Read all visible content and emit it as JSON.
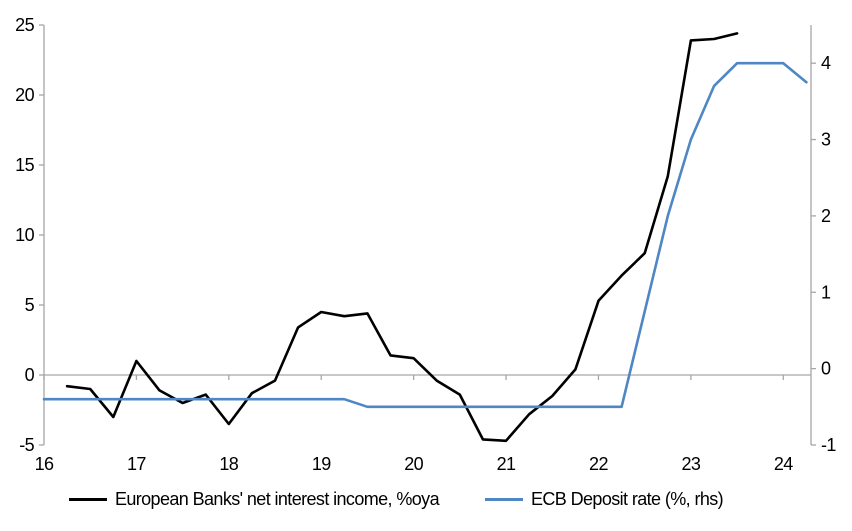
{
  "chart_data": {
    "type": "line",
    "title": "",
    "xlabel": "",
    "ylabel": "",
    "grid": "zero-line-only",
    "legend_position": "bottom-center",
    "axis_color": "#a6a6a6",
    "text_color": "#000000",
    "background_color": "#ffffff",
    "x_axis": {
      "min": 16,
      "max": 24.3,
      "ticks": [
        16,
        17,
        18,
        19,
        20,
        21,
        22,
        23,
        24
      ],
      "tick_labels": [
        "16",
        "17",
        "18",
        "19",
        "20",
        "21",
        "22",
        "23",
        "24"
      ]
    },
    "left_axis": {
      "min": -5,
      "max": 25,
      "ticks": [
        -5,
        0,
        5,
        10,
        15,
        20,
        25
      ],
      "tick_labels": [
        "-5",
        "0",
        "5",
        "10",
        "15",
        "20",
        "25"
      ]
    },
    "right_axis": {
      "min": -1,
      "max": 4.5,
      "ticks": [
        -1,
        0,
        1,
        2,
        3,
        4
      ],
      "tick_labels": [
        "-1",
        "0",
        "1",
        "2",
        "3",
        "4"
      ]
    },
    "series": [
      {
        "name": "European Banks' net interest income, %oya",
        "axis": "left",
        "color": "#000000",
        "stroke_width": 2.6,
        "x": [
          16.25,
          16.5,
          16.75,
          17,
          17.25,
          17.5,
          17.75,
          18,
          18.25,
          18.5,
          18.75,
          19,
          19.25,
          19.5,
          19.75,
          20,
          20.25,
          20.5,
          20.75,
          21,
          21.25,
          21.5,
          21.75,
          22,
          22.25,
          22.5,
          22.75,
          23,
          23.25,
          23.5
        ],
        "y": [
          -0.8,
          -1.0,
          -3.0,
          1.0,
          -1.1,
          -2.0,
          -1.4,
          -3.5,
          -1.3,
          -0.4,
          3.4,
          4.5,
          4.2,
          4.4,
          1.4,
          1.2,
          -0.4,
          -1.4,
          -4.6,
          -4.7,
          -2.8,
          -1.5,
          0.4,
          5.3,
          7.1,
          8.7,
          14.2,
          23.9,
          24.0,
          24.4
        ]
      },
      {
        "name": "ECB Deposit rate (%, rhs)",
        "axis": "right",
        "color": "#4f86c4",
        "stroke_width": 2.6,
        "x": [
          16,
          16.25,
          16.5,
          16.75,
          17,
          17.25,
          17.5,
          17.75,
          18,
          18.25,
          18.5,
          18.75,
          19,
          19.25,
          19.5,
          19.75,
          20,
          20.25,
          20.5,
          20.75,
          21,
          21.25,
          21.5,
          21.75,
          22,
          22.25,
          22.5,
          22.75,
          23,
          23.25,
          23.5,
          23.75,
          24,
          24.25
        ],
        "y": [
          -0.4,
          -0.4,
          -0.4,
          -0.4,
          -0.4,
          -0.4,
          -0.4,
          -0.4,
          -0.4,
          -0.4,
          -0.4,
          -0.4,
          -0.4,
          -0.4,
          -0.5,
          -0.5,
          -0.5,
          -0.5,
          -0.5,
          -0.5,
          -0.5,
          -0.5,
          -0.5,
          -0.5,
          -0.5,
          -0.5,
          0.75,
          2.0,
          3.0,
          3.7,
          4.0,
          4.0,
          4.0,
          3.75
        ]
      }
    ]
  }
}
